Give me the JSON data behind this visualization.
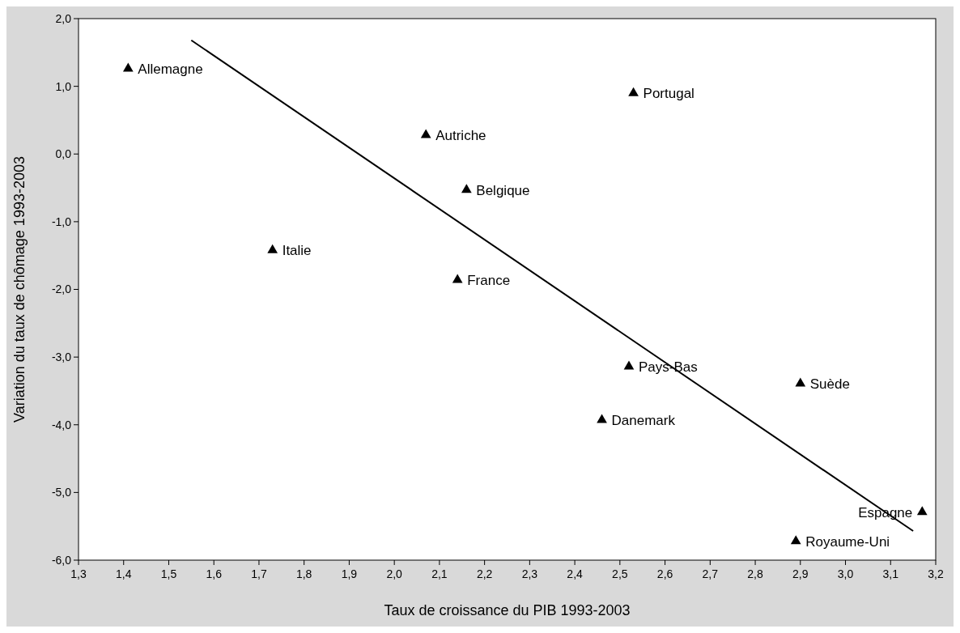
{
  "chart_data": {
    "type": "scatter",
    "xlabel": "Taux de croissance du PIB 1993-2003",
    "ylabel": "Variation du taux de chômage 1993-2003",
    "marker": "triangle",
    "grid": false,
    "xlim": [
      1.3,
      3.2
    ],
    "ylim": [
      -6,
      2
    ],
    "xticks": [
      {
        "value": 1.3,
        "label": "1,3"
      },
      {
        "value": 1.4,
        "label": "1,4"
      },
      {
        "value": 1.5,
        "label": "1,5"
      },
      {
        "value": 1.6,
        "label": "1,6"
      },
      {
        "value": 1.7,
        "label": "1,7"
      },
      {
        "value": 1.8,
        "label": "1,8"
      },
      {
        "value": 1.9,
        "label": "1,9"
      },
      {
        "value": 2.0,
        "label": "2,0"
      },
      {
        "value": 2.1,
        "label": "2,1"
      },
      {
        "value": 2.2,
        "label": "2,2"
      },
      {
        "value": 2.3,
        "label": "2,3"
      },
      {
        "value": 2.4,
        "label": "2,4"
      },
      {
        "value": 2.5,
        "label": "2,5"
      },
      {
        "value": 2.6,
        "label": "2,6"
      },
      {
        "value": 2.7,
        "label": "2,7"
      },
      {
        "value": 2.8,
        "label": "2,8"
      },
      {
        "value": 2.9,
        "label": "2,9"
      },
      {
        "value": 3.0,
        "label": "3,0"
      },
      {
        "value": 3.1,
        "label": "3,1"
      },
      {
        "value": 3.2,
        "label": "3,2"
      }
    ],
    "yticks": [
      {
        "value": 2,
        "label": "2,0"
      },
      {
        "value": 1,
        "label": "1,0"
      },
      {
        "value": 0,
        "label": "0,0"
      },
      {
        "value": -1,
        "label": "-1,0"
      },
      {
        "value": -2,
        "label": "-2,0"
      },
      {
        "value": -3,
        "label": "-3,0"
      },
      {
        "value": -4,
        "label": "-4,0"
      },
      {
        "value": -5,
        "label": "-5,0"
      },
      {
        "value": -6,
        "label": "-6,0"
      }
    ],
    "series": [
      {
        "name": "Allemagne",
        "color": "#000000",
        "x": [
          1.41
        ],
        "values": [
          1.26
        ]
      },
      {
        "name": "Portugal",
        "color": "#000000",
        "x": [
          2.53
        ],
        "values": [
          0.9
        ]
      },
      {
        "name": "Autriche",
        "color": "#000000",
        "x": [
          2.07
        ],
        "values": [
          0.28
        ]
      },
      {
        "name": "Belgique",
        "color": "#000000",
        "x": [
          2.16
        ],
        "values": [
          -0.53
        ]
      },
      {
        "name": "Italie",
        "color": "#000000",
        "x": [
          1.73
        ],
        "values": [
          -1.42
        ]
      },
      {
        "name": "France",
        "color": "#000000",
        "x": [
          2.14
        ],
        "values": [
          -1.86
        ]
      },
      {
        "name": "Pays-Bas",
        "color": "#000000",
        "x": [
          2.52
        ],
        "values": [
          -3.14
        ]
      },
      {
        "name": "Suède",
        "color": "#000000",
        "x": [
          2.9
        ],
        "values": [
          -3.39
        ]
      },
      {
        "name": "Danemark",
        "color": "#000000",
        "x": [
          2.46
        ],
        "values": [
          -3.93
        ]
      },
      {
        "name": "Espagne",
        "color": "#000000",
        "x": [
          3.17
        ],
        "values": [
          -5.29
        ]
      },
      {
        "name": "Royaume-Uni",
        "color": "#000000",
        "x": [
          2.89
        ],
        "values": [
          -5.72
        ]
      },
      {
        "type": "line",
        "marker": "none",
        "color": "#000000",
        "x": [
          1.55,
          3.15
        ],
        "values": [
          1.68,
          -5.57
        ]
      }
    ]
  }
}
